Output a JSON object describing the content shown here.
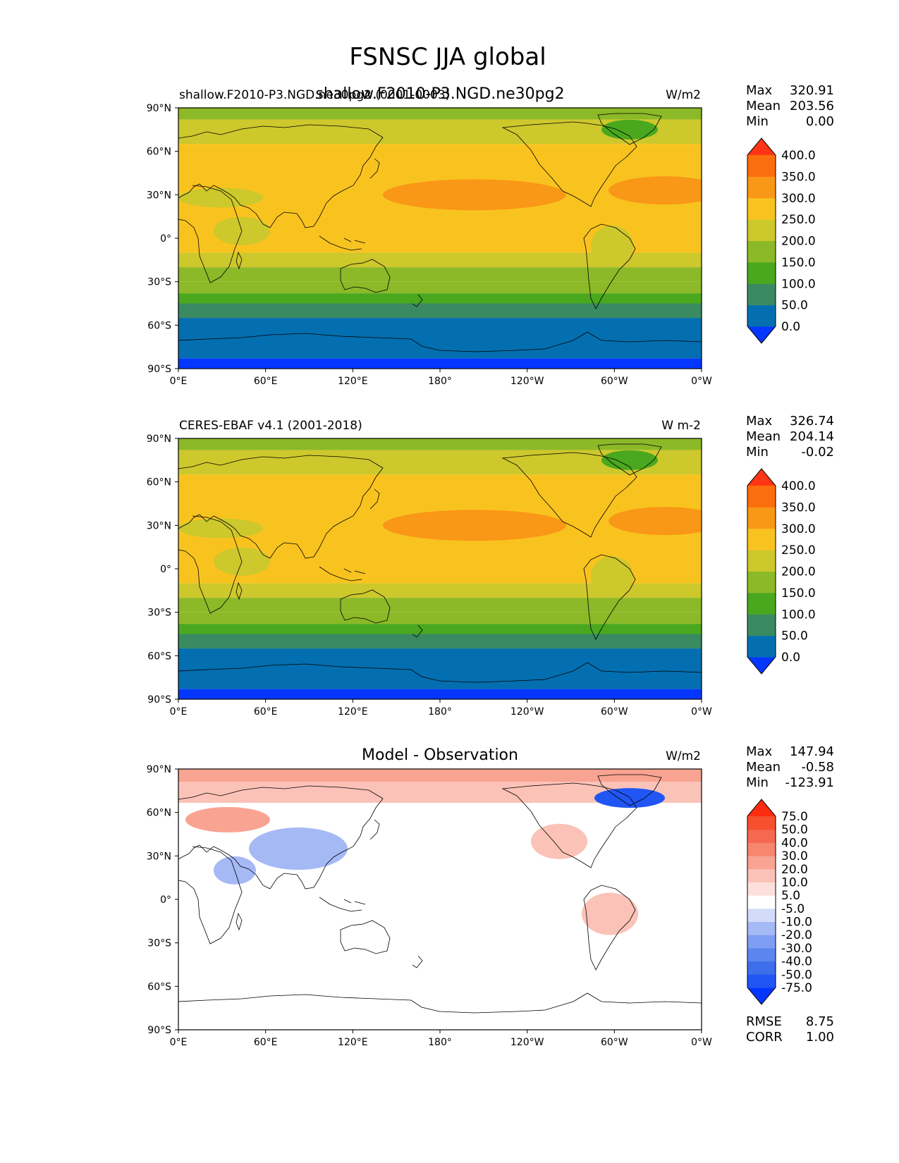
{
  "title": "FSNSC JJA global",
  "chart_data": [
    {
      "type": "heatmap",
      "panel": "test",
      "title": "shallow.F2010-P3.NGD.ne30pg2",
      "left_label": "shallow.F2010-P3.NGD.ne30pg2 (0001-0003)",
      "units": "W/m2",
      "stats": {
        "max_label": "Max",
        "max": "320.91",
        "mean_label": "Mean",
        "mean": "203.56",
        "min_label": "Min",
        "min": "0.00"
      },
      "colorbar_levels": [
        "0.0",
        "50.0",
        "100.0",
        "150.0",
        "200.0",
        "250.0",
        "300.0",
        "350.0",
        "400.0"
      ],
      "colorbar_colors": [
        "#0536ff",
        "#046fb0",
        "#3a8a62",
        "#4aa81e",
        "#8cb928",
        "#cdc82c",
        "#f9c31f",
        "#f99716",
        "#fb6e0d",
        "#ff3516"
      ],
      "lat_ticks": [
        "90°N",
        "60°N",
        "30°N",
        "0°",
        "30°S",
        "60°S",
        "90°S"
      ],
      "lon_ticks": [
        "0°E",
        "60°E",
        "120°E",
        "180°",
        "120°W",
        "60°W",
        "0°W"
      ],
      "zonal_bands": [
        {
          "lat_range": [
            82,
            90
          ],
          "value": 150
        },
        {
          "lat_range": [
            65,
            82
          ],
          "value": 225
        },
        {
          "lat_range": [
            45,
            65
          ],
          "value": 275
        },
        {
          "lat_range": [
            -10,
            45
          ],
          "value": 275
        },
        {
          "lat_range": [
            -20,
            -10
          ],
          "value": 225
        },
        {
          "lat_range": [
            -30,
            -20
          ],
          "value": 175
        },
        {
          "lat_range": [
            -38,
            -30
          ],
          "value": 150
        },
        {
          "lat_range": [
            -45,
            -38
          ],
          "value": 125
        },
        {
          "lat_range": [
            -55,
            -45
          ],
          "value": 75
        },
        {
          "lat_range": [
            -83,
            -55
          ],
          "value": 25
        },
        {
          "lat_range": [
            -90,
            -83
          ],
          "value": -10
        }
      ]
    },
    {
      "type": "heatmap",
      "panel": "reference",
      "left_label": "CERES-EBAF v4.1 (2001-2018)",
      "units": "W m-2",
      "stats": {
        "max_label": "Max",
        "max": "326.74",
        "mean_label": "Mean",
        "mean": "204.14",
        "min_label": "Min",
        "min": "-0.02"
      },
      "colorbar_levels": [
        "0.0",
        "50.0",
        "100.0",
        "150.0",
        "200.0",
        "250.0",
        "300.0",
        "350.0",
        "400.0"
      ],
      "colorbar_colors": [
        "#0536ff",
        "#046fb0",
        "#3a8a62",
        "#4aa81e",
        "#8cb928",
        "#cdc82c",
        "#f9c31f",
        "#f99716",
        "#fb6e0d",
        "#ff3516"
      ],
      "lat_ticks": [
        "90°N",
        "60°N",
        "30°N",
        "0°",
        "30°S",
        "60°S",
        "90°S"
      ],
      "lon_ticks": [
        "0°E",
        "60°E",
        "120°E",
        "180°",
        "120°W",
        "60°W",
        "0°W"
      ],
      "zonal_bands": [
        {
          "lat_range": [
            82,
            90
          ],
          "value": 150
        },
        {
          "lat_range": [
            65,
            82
          ],
          "value": 225
        },
        {
          "lat_range": [
            -10,
            65
          ],
          "value": 275
        },
        {
          "lat_range": [
            -20,
            -10
          ],
          "value": 225
        },
        {
          "lat_range": [
            -30,
            -20
          ],
          "value": 175
        },
        {
          "lat_range": [
            -38,
            -30
          ],
          "value": 150
        },
        {
          "lat_range": [
            -45,
            -38
          ],
          "value": 125
        },
        {
          "lat_range": [
            -55,
            -45
          ],
          "value": 75
        },
        {
          "lat_range": [
            -83,
            -55
          ],
          "value": 25
        },
        {
          "lat_range": [
            -90,
            -83
          ],
          "value": -10
        }
      ]
    },
    {
      "type": "heatmap",
      "panel": "difference",
      "title": "Model - Observation",
      "units": "W/m2",
      "stats": {
        "max_label": "Max",
        "max": "147.94",
        "mean_label": "Mean",
        "mean": "-0.58",
        "min_label": "Min",
        "min": "-123.91"
      },
      "colorbar_levels": [
        "-75.0",
        "-50.0",
        "-40.0",
        "-30.0",
        "-20.0",
        "-10.0",
        "-5.0",
        "5.0",
        "10.0",
        "20.0",
        "30.0",
        "40.0",
        "50.0",
        "75.0"
      ],
      "colorbar_colors": [
        "#0536ff",
        "#2156f5",
        "#3d6eeb",
        "#5b86ef",
        "#7d9ef2",
        "#a5b9f5",
        "#d2dbf9",
        "#ffffff",
        "#fde0dc",
        "#fbc2b8",
        "#f9a392",
        "#f7866f",
        "#f6684f",
        "#f6502f",
        "#ff2b10"
      ],
      "lat_ticks": [
        "90°N",
        "60°N",
        "30°N",
        "0°",
        "30°S",
        "60°S",
        "90°S"
      ],
      "lon_ticks": [
        "0°E",
        "60°E",
        "120°E",
        "180°",
        "120°W",
        "60°W",
        "0°W"
      ],
      "footer": {
        "rmse_label": "RMSE",
        "rmse": "8.75",
        "corr_label": "CORR",
        "corr": "1.00"
      }
    }
  ]
}
